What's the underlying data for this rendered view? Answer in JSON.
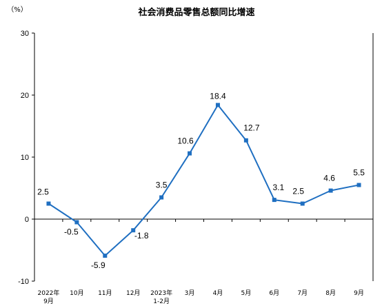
{
  "chart_data": {
    "type": "line",
    "title": "社会消费品零售总额同比增速",
    "ylabel": "（%）",
    "xlabel": "",
    "ylim": [
      -10,
      30
    ],
    "yticks": [
      "30",
      "20",
      "10",
      "0",
      "-10"
    ],
    "categories": [
      [
        "2022年",
        "9月"
      ],
      [
        "10月"
      ],
      [
        "11月"
      ],
      [
        "12月"
      ],
      [
        "2023年",
        "1-2月"
      ],
      [
        "3月"
      ],
      [
        "4月"
      ],
      [
        "5月"
      ],
      [
        "6月"
      ],
      [
        "7月"
      ],
      [
        "8月"
      ],
      [
        "9月"
      ]
    ],
    "series": [
      {
        "values": [
          2.5,
          -0.5,
          -5.9,
          -1.8,
          3.5,
          10.6,
          18.4,
          12.7,
          3.1,
          2.5,
          4.6,
          5.5
        ],
        "labels": [
          "2.5",
          "-0.5",
          "-5.9",
          "-1.8",
          "3.5",
          "10.6",
          "18.4",
          "12.7",
          "3.1",
          "2.5",
          "4.6",
          "5.5"
        ],
        "color": "#1f6fc1"
      }
    ],
    "grid": false,
    "legend": "none"
  }
}
